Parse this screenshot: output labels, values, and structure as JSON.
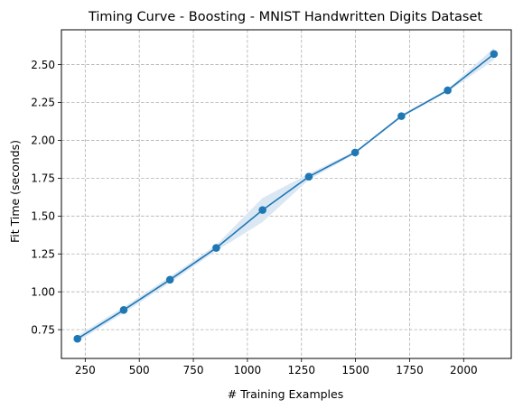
{
  "chart_data": {
    "type": "line",
    "title": "Timing Curve - Boosting - MNIST Handwritten Digits Dataset",
    "xlabel": "# Training Examples",
    "ylabel": "Fit Time (seconds)",
    "xlim": [
      140,
      2220
    ],
    "ylim": [
      0.56,
      2.73
    ],
    "xticks": [
      250,
      500,
      750,
      1000,
      1250,
      1500,
      1750,
      2000
    ],
    "yticks": [
      0.75,
      1.0,
      1.25,
      1.5,
      1.75,
      2.0,
      2.25,
      2.5
    ],
    "xtick_labels": [
      "250",
      "500",
      "750",
      "1000",
      "1250",
      "1500",
      "1750",
      "2000"
    ],
    "ytick_labels": [
      "0.75",
      "1.00",
      "1.25",
      "1.50",
      "1.75",
      "2.00",
      "2.25",
      "2.50"
    ],
    "grid": true,
    "grid_style": "dashed",
    "color": "#1f77b4",
    "band_color": "#dbe8f4",
    "series": [
      {
        "x": [
          214,
          428,
          642,
          856,
          1070,
          1284,
          1498,
          1712,
          1926,
          2140
        ],
        "values": [
          0.69,
          0.88,
          1.08,
          1.29,
          1.54,
          1.76,
          1.92,
          2.16,
          2.33,
          2.57
        ],
        "lower": [
          0.67,
          0.86,
          1.06,
          1.27,
          1.46,
          1.74,
          1.91,
          2.15,
          2.32,
          2.53
        ],
        "upper": [
          0.71,
          0.9,
          1.1,
          1.31,
          1.62,
          1.78,
          1.93,
          2.17,
          2.34,
          2.61
        ]
      }
    ]
  }
}
